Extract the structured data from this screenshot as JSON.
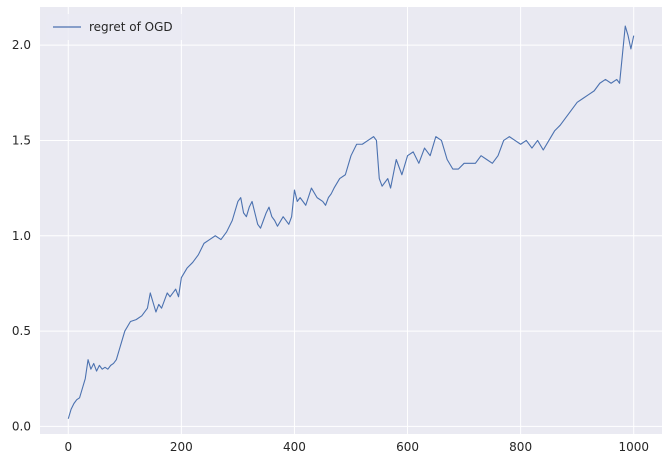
{
  "chart_data": {
    "type": "line",
    "title": "",
    "xlabel": "",
    "ylabel": "",
    "xlim": [
      -50,
      1050
    ],
    "ylim": [
      -0.04,
      2.2
    ],
    "grid": true,
    "legend_position": "upper-left",
    "x_ticks": [
      {
        "value": 0,
        "label": "0"
      },
      {
        "value": 200,
        "label": "200"
      },
      {
        "value": 400,
        "label": "400"
      },
      {
        "value": 600,
        "label": "600"
      },
      {
        "value": 800,
        "label": "800"
      },
      {
        "value": 1000,
        "label": "1000"
      }
    ],
    "y_ticks": [
      {
        "value": 0.0,
        "label": "0.0"
      },
      {
        "value": 0.5,
        "label": "0.5"
      },
      {
        "value": 1.0,
        "label": "1.0"
      },
      {
        "value": 1.5,
        "label": "1.5"
      },
      {
        "value": 2.0,
        "label": "2.0"
      }
    ],
    "series": [
      {
        "name": "regret of OGD",
        "color": "#4c72b0",
        "x": [
          0,
          5,
          10,
          15,
          20,
          25,
          30,
          35,
          40,
          45,
          50,
          55,
          60,
          65,
          70,
          75,
          80,
          85,
          90,
          95,
          100,
          110,
          120,
          130,
          140,
          145,
          150,
          155,
          160,
          165,
          170,
          175,
          180,
          185,
          190,
          195,
          200,
          210,
          220,
          230,
          240,
          250,
          260,
          270,
          280,
          290,
          300,
          305,
          310,
          315,
          320,
          325,
          330,
          335,
          340,
          345,
          350,
          355,
          360,
          365,
          370,
          380,
          390,
          395,
          400,
          405,
          410,
          420,
          430,
          440,
          450,
          455,
          460,
          465,
          470,
          480,
          490,
          500,
          510,
          520,
          530,
          540,
          545,
          550,
          555,
          560,
          565,
          570,
          580,
          590,
          600,
          610,
          620,
          630,
          640,
          650,
          660,
          670,
          680,
          690,
          700,
          710,
          720,
          730,
          740,
          750,
          760,
          770,
          780,
          790,
          800,
          810,
          820,
          830,
          840,
          850,
          860,
          870,
          880,
          890,
          900,
          910,
          920,
          930,
          940,
          950,
          960,
          970,
          975,
          980,
          985,
          990,
          995,
          1000
        ],
        "y": [
          0.04,
          0.09,
          0.12,
          0.14,
          0.15,
          0.2,
          0.25,
          0.35,
          0.3,
          0.33,
          0.29,
          0.32,
          0.3,
          0.31,
          0.3,
          0.32,
          0.33,
          0.35,
          0.4,
          0.45,
          0.5,
          0.55,
          0.56,
          0.58,
          0.62,
          0.7,
          0.65,
          0.6,
          0.64,
          0.62,
          0.66,
          0.7,
          0.68,
          0.7,
          0.72,
          0.68,
          0.78,
          0.83,
          0.86,
          0.9,
          0.96,
          0.98,
          1.0,
          0.98,
          1.02,
          1.08,
          1.18,
          1.2,
          1.12,
          1.1,
          1.15,
          1.18,
          1.12,
          1.06,
          1.04,
          1.08,
          1.12,
          1.15,
          1.1,
          1.08,
          1.05,
          1.1,
          1.06,
          1.1,
          1.24,
          1.18,
          1.2,
          1.16,
          1.25,
          1.2,
          1.18,
          1.16,
          1.2,
          1.22,
          1.25,
          1.3,
          1.32,
          1.42,
          1.48,
          1.48,
          1.5,
          1.52,
          1.5,
          1.3,
          1.26,
          1.28,
          1.3,
          1.25,
          1.4,
          1.32,
          1.42,
          1.44,
          1.38,
          1.46,
          1.42,
          1.52,
          1.5,
          1.4,
          1.35,
          1.35,
          1.38,
          1.38,
          1.38,
          1.42,
          1.4,
          1.38,
          1.42,
          1.5,
          1.52,
          1.5,
          1.48,
          1.5,
          1.46,
          1.5,
          1.45,
          1.5,
          1.55,
          1.58,
          1.62,
          1.66,
          1.7,
          1.72,
          1.74,
          1.76,
          1.8,
          1.82,
          1.8,
          1.82,
          1.8,
          1.95,
          2.1,
          2.05,
          1.98,
          2.05
        ]
      }
    ]
  }
}
